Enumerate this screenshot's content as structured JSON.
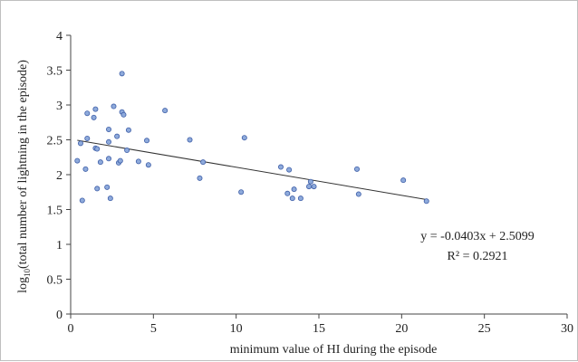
{
  "chart_data": {
    "type": "scatter",
    "title": "",
    "xlabel": "minimum value of HI during the episode",
    "ylabel_prefix": "log",
    "ylabel_subscript": "10",
    "ylabel_suffix": "(total number of lightning in the episode)",
    "xlim": [
      0,
      30
    ],
    "ylim": [
      0,
      4
    ],
    "xticks": [
      0,
      5,
      10,
      15,
      20,
      25,
      30
    ],
    "yticks": [
      0,
      0.5,
      1,
      1.5,
      2,
      2.5,
      3,
      3.5,
      4
    ],
    "xtick_labels": [
      "0",
      "5",
      "10",
      "15",
      "20",
      "25",
      "30"
    ],
    "ytick_labels": [
      "0",
      "0.5",
      "1",
      "1.5",
      "2",
      "2.5",
      "3",
      "3.5",
      "4"
    ],
    "grid": false,
    "point_color": "#8eaadb",
    "point_edge": "#3f5fa8",
    "trendline": {
      "slope": -0.0403,
      "intercept": 2.5099,
      "x_range": [
        0.4,
        21.5
      ]
    },
    "equation_text": "y = -0.0403x + 2.5099",
    "r2_text": "R² = 0.2921",
    "points": [
      {
        "x": 0.4,
        "y": 2.2
      },
      {
        "x": 0.6,
        "y": 2.45
      },
      {
        "x": 0.7,
        "y": 1.63
      },
      {
        "x": 0.9,
        "y": 2.08
      },
      {
        "x": 1.0,
        "y": 2.88
      },
      {
        "x": 1.0,
        "y": 2.52
      },
      {
        "x": 1.4,
        "y": 2.82
      },
      {
        "x": 1.5,
        "y": 2.94
      },
      {
        "x": 1.5,
        "y": 2.38
      },
      {
        "x": 1.6,
        "y": 2.37
      },
      {
        "x": 1.6,
        "y": 1.8
      },
      {
        "x": 1.8,
        "y": 2.18
      },
      {
        "x": 2.2,
        "y": 1.82
      },
      {
        "x": 2.3,
        "y": 2.65
      },
      {
        "x": 2.3,
        "y": 2.47
      },
      {
        "x": 2.3,
        "y": 2.23
      },
      {
        "x": 2.4,
        "y": 1.66
      },
      {
        "x": 2.6,
        "y": 2.98
      },
      {
        "x": 2.8,
        "y": 2.55
      },
      {
        "x": 2.9,
        "y": 2.17
      },
      {
        "x": 3.0,
        "y": 2.2
      },
      {
        "x": 3.1,
        "y": 3.45
      },
      {
        "x": 3.1,
        "y": 2.9
      },
      {
        "x": 3.2,
        "y": 2.86
      },
      {
        "x": 3.4,
        "y": 2.35
      },
      {
        "x": 3.5,
        "y": 2.64
      },
      {
        "x": 4.1,
        "y": 2.19
      },
      {
        "x": 4.6,
        "y": 2.49
      },
      {
        "x": 4.7,
        "y": 2.14
      },
      {
        "x": 5.7,
        "y": 2.92
      },
      {
        "x": 7.2,
        "y": 2.5
      },
      {
        "x": 7.8,
        "y": 1.95
      },
      {
        "x": 8.0,
        "y": 2.18
      },
      {
        "x": 10.3,
        "y": 1.75
      },
      {
        "x": 10.5,
        "y": 2.53
      },
      {
        "x": 12.7,
        "y": 2.11
      },
      {
        "x": 13.1,
        "y": 1.73
      },
      {
        "x": 13.2,
        "y": 2.07
      },
      {
        "x": 13.4,
        "y": 1.66
      },
      {
        "x": 13.5,
        "y": 1.79
      },
      {
        "x": 13.9,
        "y": 1.66
      },
      {
        "x": 14.4,
        "y": 1.83
      },
      {
        "x": 14.5,
        "y": 1.9
      },
      {
        "x": 14.7,
        "y": 1.83
      },
      {
        "x": 17.3,
        "y": 2.08
      },
      {
        "x": 17.4,
        "y": 1.72
      },
      {
        "x": 20.1,
        "y": 1.92
      },
      {
        "x": 21.5,
        "y": 1.62
      }
    ]
  }
}
